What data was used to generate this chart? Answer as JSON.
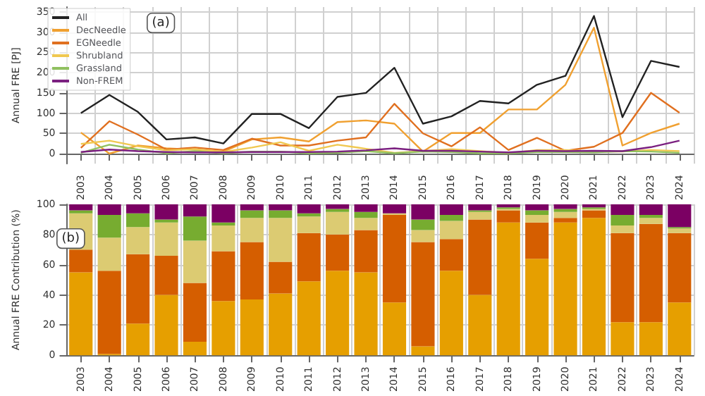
{
  "chart_data": [
    {
      "type": "line",
      "ylabel": "Annual FRE [PJ]",
      "annotations": [
        "(a)"
      ],
      "categories": [
        "2003",
        "2004",
        "2005",
        "2006",
        "2007",
        "2008",
        "2009",
        "2010",
        "2011",
        "2012",
        "2013",
        "2014",
        "2015",
        "2016",
        "2017",
        "2018",
        "2019",
        "2020",
        "2021",
        "2022",
        "2023",
        "2024"
      ],
      "ylim": [
        -25,
        362
      ],
      "yticks": [
        0,
        50,
        100,
        150,
        200,
        250,
        300,
        350
      ],
      "grid": true,
      "legend": "top left",
      "marker": "none",
      "line_style": "solid",
      "series": [
        {
          "name": "All",
          "color": "#222222",
          "values": [
            100,
            145,
            103,
            35,
            40,
            25,
            98,
            98,
            63,
            140,
            150,
            212,
            74,
            92,
            130,
            124,
            170,
            192,
            340,
            90,
            229,
            214
          ]
        },
        {
          "name": "DecNeedle",
          "color": "#f0a030",
          "values": [
            52,
            0,
            20,
            13,
            10,
            5,
            35,
            40,
            30,
            78,
            82,
            74,
            5,
            51,
            51,
            109,
            109,
            170,
            311,
            20,
            51,
            74
          ]
        },
        {
          "name": "EGNeedle",
          "color": "#e07020",
          "values": [
            14,
            80,
            47,
            10,
            15,
            9,
            37,
            20,
            20,
            32,
            40,
            123,
            50,
            18,
            65,
            9,
            39,
            7,
            17,
            51,
            150,
            101
          ]
        },
        {
          "name": "Shrubland",
          "color": "#f0c850",
          "values": [
            24,
            32,
            18,
            8,
            11,
            4,
            15,
            28,
            7,
            22,
            12,
            2,
            6,
            11,
            6,
            1,
            9,
            9,
            5,
            5,
            9,
            6
          ]
        },
        {
          "name": "Grassland",
          "color": "#90c060",
          "values": [
            2,
            22,
            10,
            1,
            6,
            1,
            5,
            5,
            1,
            2,
            6,
            1,
            5,
            4,
            1,
            1,
            4,
            4,
            3,
            6,
            5,
            2
          ]
        },
        {
          "name": "Non-FREM",
          "color": "#7b2080",
          "values": [
            4,
            10,
            6,
            4,
            3,
            3,
            4,
            4,
            4,
            5,
            8,
            13,
            7,
            7,
            5,
            3,
            7,
            6,
            7,
            6,
            16,
            32
          ]
        }
      ]
    },
    {
      "type": "bar",
      "stacked": true,
      "ylabel": "Annual FRE Contribution (%)",
      "annotations": [
        "(b)"
      ],
      "categories": [
        "2003",
        "2004",
        "2005",
        "2006",
        "2007",
        "2008",
        "2009",
        "2010",
        "2011",
        "2012",
        "2013",
        "2014",
        "2015",
        "2016",
        "2017",
        "2018",
        "2019",
        "2020",
        "2021",
        "2022",
        "2023",
        "2024"
      ],
      "ylim": [
        0,
        100
      ],
      "yticks": [
        0,
        20,
        40,
        60,
        80,
        100
      ],
      "grid": true,
      "series": [
        {
          "color": "#e69f00",
          "values": [
            55,
            1,
            21,
            40,
            9,
            36,
            37,
            41,
            49,
            56,
            55,
            35,
            6,
            56,
            40,
            88,
            64,
            88,
            91,
            22,
            22,
            35
          ]
        },
        {
          "color": "#d55e00",
          "values": [
            15,
            55,
            46,
            26,
            39,
            33,
            38,
            21,
            32,
            24,
            28,
            58,
            69,
            21,
            50,
            8,
            24,
            3,
            5,
            59,
            65,
            46
          ]
        },
        {
          "color": "#dccb72",
          "values": [
            24,
            22,
            18,
            22,
            28,
            17,
            16,
            29,
            11,
            15,
            8,
            1,
            8,
            12,
            5,
            1,
            5,
            4,
            1,
            5,
            4,
            3
          ]
        },
        {
          "color": "#77ac30",
          "values": [
            2,
            15,
            9,
            2,
            16,
            2,
            5,
            5,
            2,
            2,
            4,
            0,
            7,
            4,
            1,
            1,
            3,
            2,
            1,
            7,
            2,
            1
          ]
        },
        {
          "color": "#7b0063",
          "values": [
            4,
            7,
            6,
            10,
            8,
            12,
            4,
            4,
            6,
            3,
            5,
            6,
            10,
            7,
            4,
            2,
            4,
            3,
            2,
            7,
            7,
            15
          ]
        }
      ]
    }
  ]
}
